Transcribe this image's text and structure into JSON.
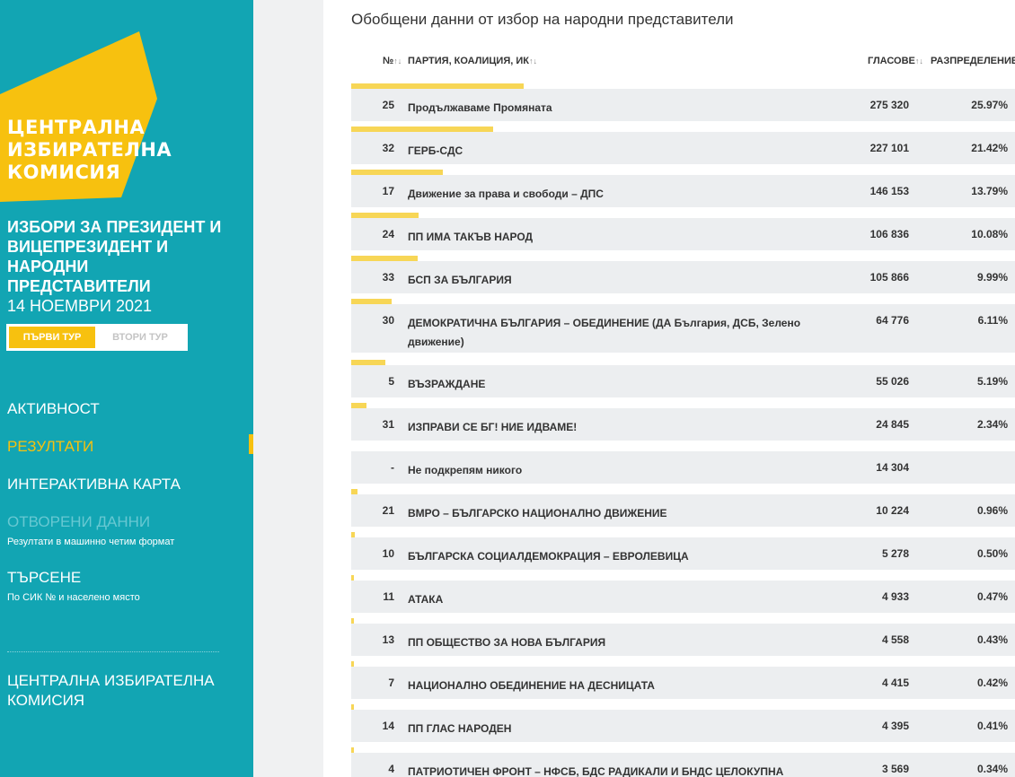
{
  "brand": {
    "logo_lines": [
      "ЦЕНТРАЛНА",
      "ИЗБИРАТЕЛНА",
      "КОМИСИЯ"
    ],
    "yellow": "#f7c10f",
    "teal": "#12a5b3"
  },
  "election": {
    "title": "ИЗБОРИ ЗА ПРЕЗИДЕНТ И ВИЦЕПРЕЗИДЕНТ И НАРОДНИ ПРЕДСТАВИТЕЛИ",
    "date": "14 НОЕМВРИ 2021",
    "round1": "ПЪРВИ ТУР",
    "round2": "ВТОРИ ТУР"
  },
  "nav": {
    "activity": "АКТИВНОСТ",
    "results": "РЕЗУЛТАТИ",
    "map": "ИНТЕРАКТИВНА КАРТА",
    "open_data": "ОТВОРЕНИ ДАННИ",
    "open_data_sub": "Резултати в машинно четим формат",
    "search": "ТЪРСЕНЕ",
    "search_sub": "По СИК № и населено място",
    "cik": "ЦЕНТРАЛНА ИЗБИРАТЕЛНА КОМИСИЯ"
  },
  "main": {
    "title": "Обобщени данни от избор на народни представители",
    "col_no": "№",
    "col_party": "ПАРТИЯ, КОАЛИЦИЯ, ИК",
    "col_votes": "ГЛАСОВЕ",
    "col_dist": "РАЗПРЕДЕЛЕНИЕ"
  },
  "rows": [
    {
      "no": "25",
      "party": "Продължаваме Промяната",
      "votes": "275 320",
      "pct": "25.97%",
      "share": 0.2597
    },
    {
      "no": "32",
      "party": "ГЕРБ-СДС",
      "votes": "227 101",
      "pct": "21.42%",
      "share": 0.2142
    },
    {
      "no": "17",
      "party": "Движение за права и свободи – ДПС",
      "votes": "146 153",
      "pct": "13.79%",
      "share": 0.1379
    },
    {
      "no": "24",
      "party": "ПП ИМА ТАКЪВ НАРОД",
      "votes": "106 836",
      "pct": "10.08%",
      "share": 0.1008
    },
    {
      "no": "33",
      "party": "БСП ЗА БЪЛГАРИЯ",
      "votes": "105 866",
      "pct": "9.99%",
      "share": 0.0999
    },
    {
      "no": "30",
      "party": "ДЕМОКРАТИЧНА БЪЛГАРИЯ – ОБЕДИНЕНИЕ (ДА България, ДСБ, Зелено движение)",
      "votes": "64 776",
      "pct": "6.11%",
      "share": 0.0611
    },
    {
      "no": "5",
      "party": "ВЪЗРАЖДАНЕ",
      "votes": "55 026",
      "pct": "5.19%",
      "share": 0.0519
    },
    {
      "no": "31",
      "party": "ИЗПРАВИ СЕ БГ! НИЕ ИДВАМЕ!",
      "votes": "24 845",
      "pct": "2.34%",
      "share": 0.0234
    },
    {
      "no": "-",
      "party": "Не подкрепям никого",
      "votes": "14 304",
      "pct": "",
      "share": 0
    },
    {
      "no": "21",
      "party": "ВМРО – БЪЛГАРСКО НАЦИОНАЛНО ДВИЖЕНИЕ",
      "votes": "10 224",
      "pct": "0.96%",
      "share": 0.0096
    },
    {
      "no": "10",
      "party": "БЪЛГАРСКА СОЦИАЛДЕМОКРАЦИЯ – ЕВРОЛЕВИЦА",
      "votes": "5 278",
      "pct": "0.50%",
      "share": 0.005
    },
    {
      "no": "11",
      "party": "АТАКА",
      "votes": "4 933",
      "pct": "0.47%",
      "share": 0.0047
    },
    {
      "no": "13",
      "party": "ПП ОБЩЕСТВО ЗА НОВА БЪЛГАРИЯ",
      "votes": "4 558",
      "pct": "0.43%",
      "share": 0.0043
    },
    {
      "no": "7",
      "party": "НАЦИОНАЛНО ОБЕДИНЕНИЕ НА ДЕСНИЦАТА",
      "votes": "4 415",
      "pct": "0.42%",
      "share": 0.0042
    },
    {
      "no": "14",
      "party": "ПП ГЛАС НАРОДЕН",
      "votes": "4 395",
      "pct": "0.41%",
      "share": 0.0041
    },
    {
      "no": "4",
      "party": "ПАТРИОТИЧЕН ФРОНТ – НФСБ, БДС РАДИКАЛИ И БНДС ЦЕЛОКУПНА",
      "votes": "3 569",
      "pct": "0.34%",
      "share": 0.0034
    }
  ]
}
